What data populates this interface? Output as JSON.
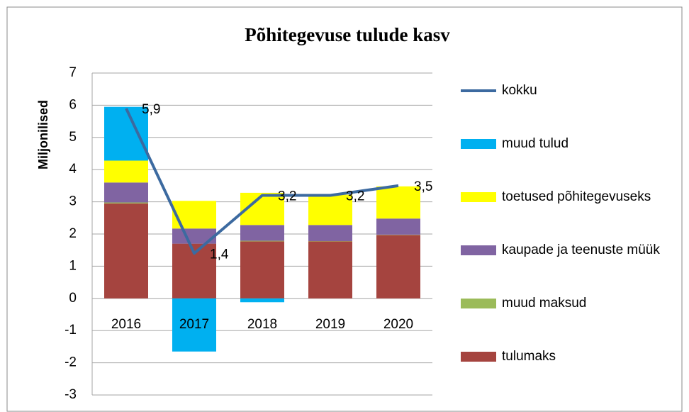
{
  "chart_data": {
    "type": "stacked-bar-line",
    "title": "Põhitegevuse tulude kasv",
    "y_label": "Miljonilised",
    "categories": [
      "2016",
      "2017",
      "2018",
      "2019",
      "2020"
    ],
    "series": [
      {
        "name": "tulumaks",
        "color": "#a5443f",
        "values": [
          2.95,
          1.7,
          1.77,
          1.77,
          1.97
        ]
      },
      {
        "name": "muud maksud",
        "color": "#9bbb59",
        "values": [
          0.03,
          0,
          0.02,
          0.01,
          0.01
        ]
      },
      {
        "name": "kaupade ja teenuste müük",
        "color": "#8064a2",
        "values": [
          0.62,
          0.47,
          0.49,
          0.5,
          0.5
        ]
      },
      {
        "name": "toetused põhitegevuseks",
        "color": "#ffff00",
        "values": [
          0.68,
          0.86,
          1.0,
          0.94,
          1.0
        ]
      },
      {
        "name": "muud tulud",
        "color": "#00b0f0",
        "values": [
          1.67,
          -1.65,
          -0.12,
          0,
          0
        ]
      },
      {
        "name": "kokku",
        "color": "#3c6aa0",
        "type": "line",
        "values": [
          5.9,
          1.4,
          3.2,
          3.2,
          3.5
        ],
        "value_labels": [
          "5,9",
          "1,4",
          "3,2",
          "3,2",
          "3,5"
        ]
      }
    ],
    "ylim": [
      -3,
      7
    ],
    "yticks": [
      -3,
      -2,
      -1,
      0,
      1,
      2,
      3,
      4,
      5,
      6,
      7
    ],
    "grid": true,
    "legend": "right"
  }
}
